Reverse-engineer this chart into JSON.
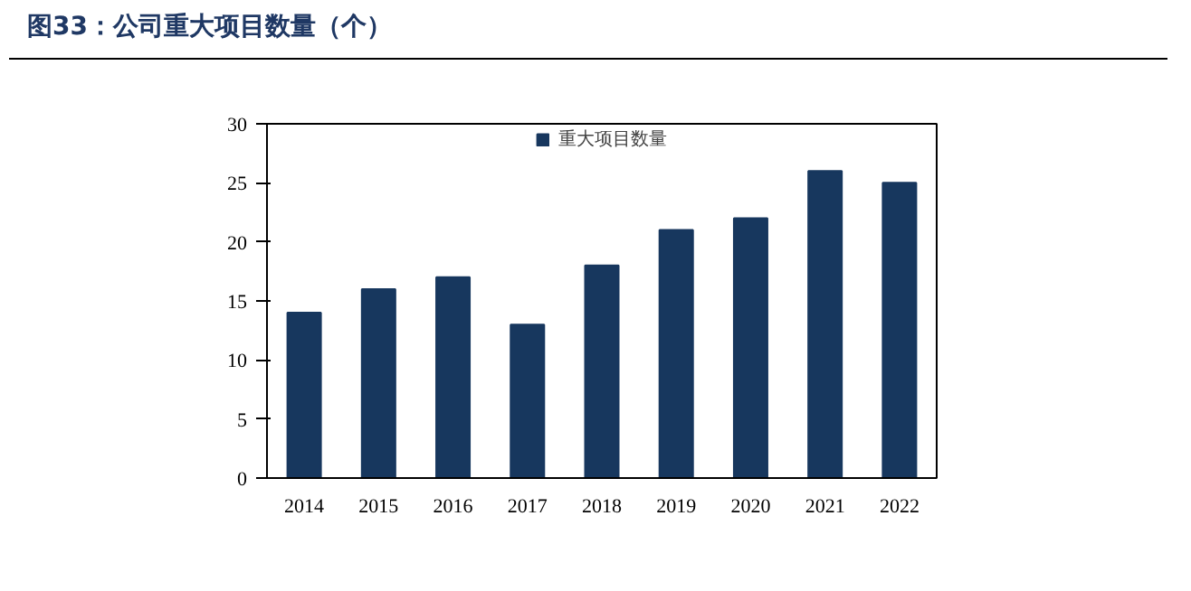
{
  "chart_data": {
    "type": "bar",
    "title": "图33：公司重大项目数量（个）",
    "categories": [
      "2014",
      "2015",
      "2016",
      "2017",
      "2018",
      "2019",
      "2020",
      "2021",
      "2022"
    ],
    "series": [
      {
        "name": "重大项目数量",
        "color": "#17375e",
        "values": [
          14,
          16,
          17,
          13,
          18,
          21,
          22,
          26,
          25
        ]
      }
    ],
    "ylim": [
      0,
      30
    ],
    "yticks": [
      0,
      5,
      10,
      15,
      20,
      25,
      30
    ],
    "grid": false,
    "legend": "top"
  }
}
